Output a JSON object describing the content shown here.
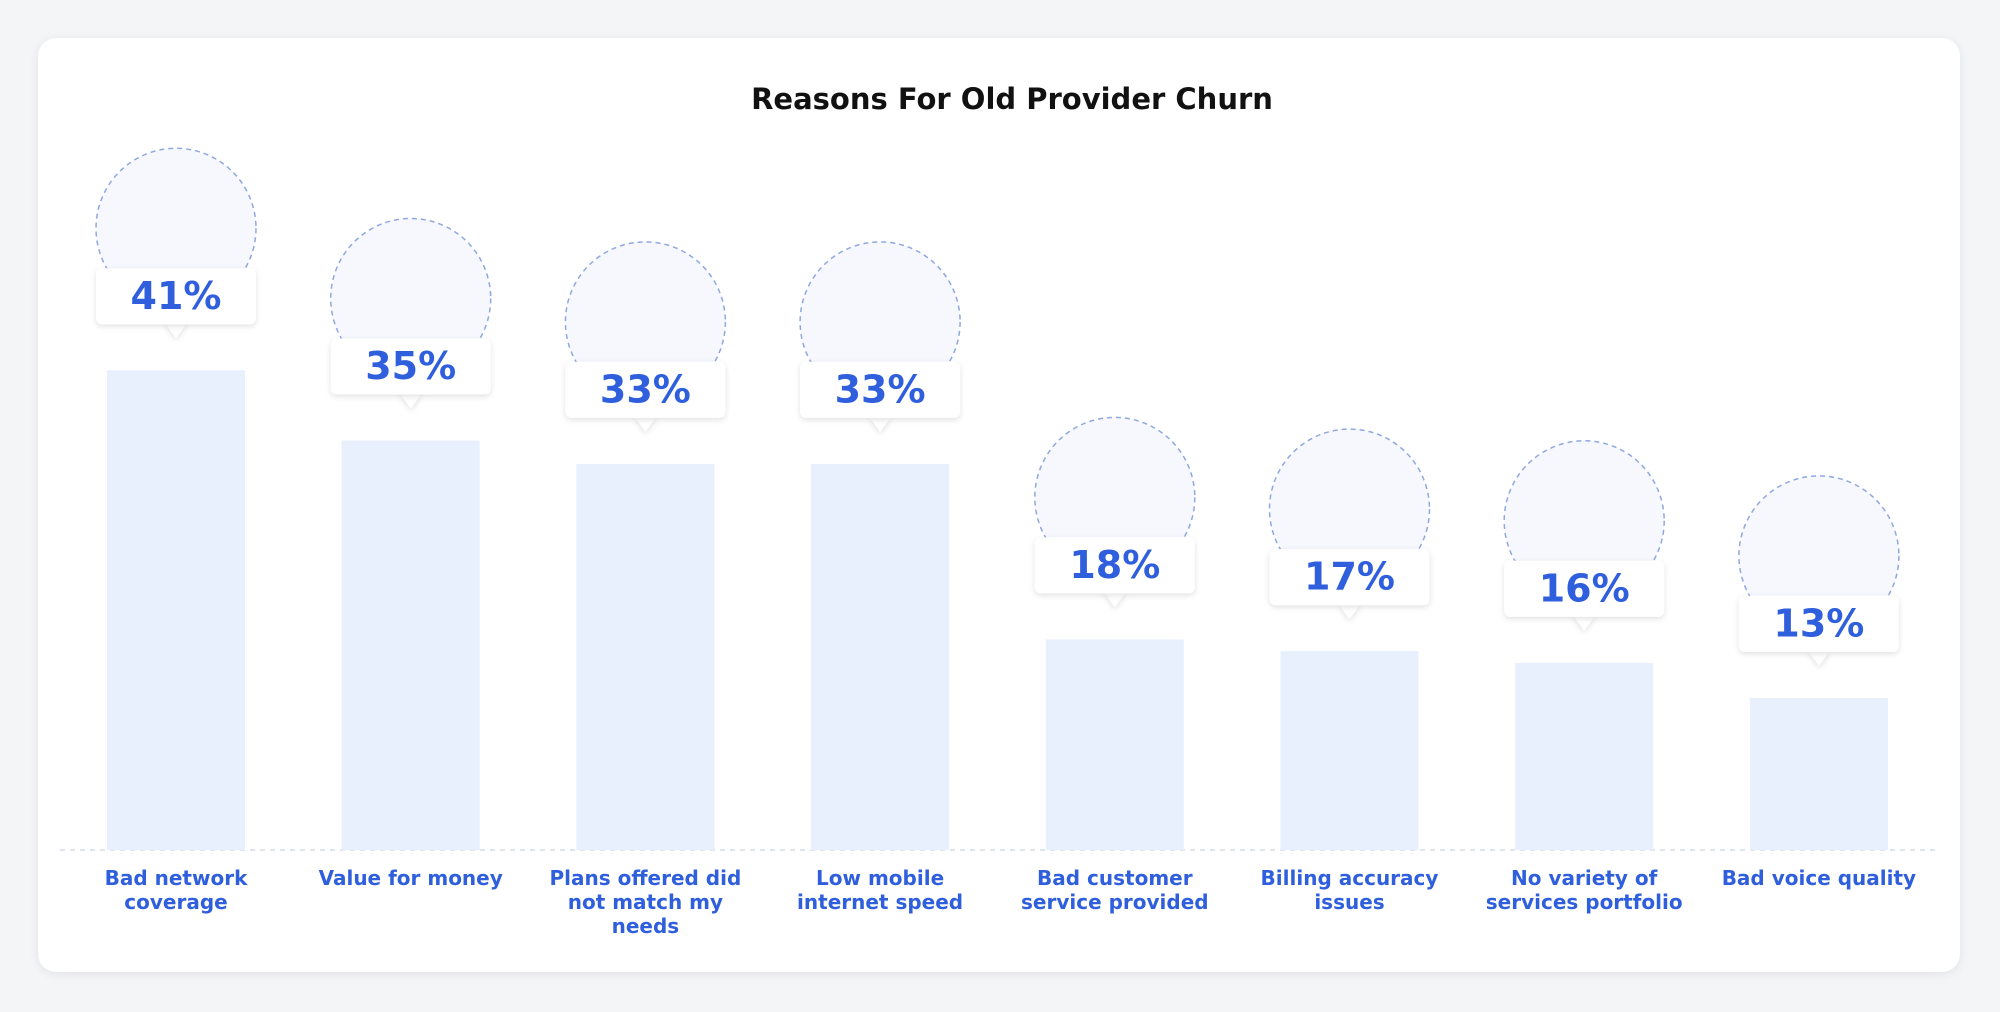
{
  "chart_data": {
    "type": "bar",
    "title": "Reasons For Old Provider Churn",
    "categories": [
      "Bad network coverage",
      "Value for money",
      "Plans offered did not match my needs",
      "Low mobile internet speed",
      "Bad customer service provided",
      "Billing accuracy issues",
      "No variety of services portfolio",
      "Bad voice quality"
    ],
    "values": [
      41,
      35,
      33,
      33,
      18,
      17,
      16,
      13
    ],
    "value_labels": [
      "41%",
      "35%",
      "33%",
      "33%",
      "18%",
      "17%",
      "16%",
      "13%"
    ],
    "color": "#e8effd",
    "label_color": "#2f5fdc"
  }
}
